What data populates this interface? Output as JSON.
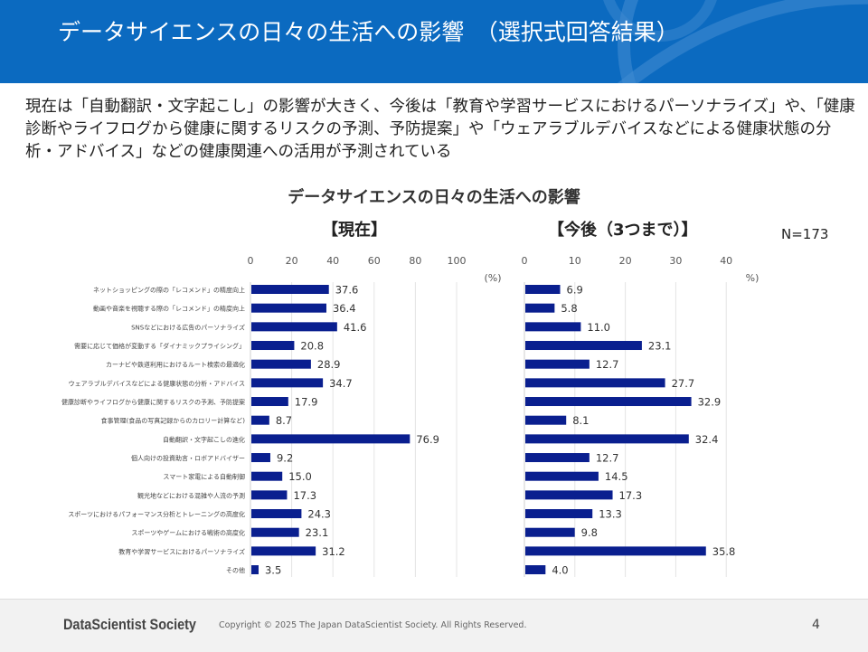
{
  "header": {
    "title": "データサイエンスの日々の生活への影響　（選択式回答結果）"
  },
  "summary": "現在は「自動翻訳・文字起こし」の影響が大きく、今後は「教育や学習サービスにおけるパーソナライズ」や、「健康診断やライフログから健康に関するリスクの予測、予防提案」や「ウェアラブルデバイスなどによる健康状態の分析・アドバイス」などの健康関連への活用が予測されている",
  "chart_title": "データサイエンスの日々の生活への影響",
  "sample_size": "N=173",
  "colors": {
    "bar": "#0a1f8f",
    "header": "#0b6ac0"
  },
  "chart_data": [
    {
      "type": "bar",
      "orientation": "horizontal",
      "title": "【現在】",
      "unit_label": "(%)",
      "xlim": [
        0,
        100
      ],
      "ticks": [
        0,
        20,
        40,
        60,
        80,
        100
      ],
      "categories": [
        "ネットショッピングの際の「レコメンド」の精度向上",
        "動画や音楽を視聴する際の「レコメンド」の精度向上",
        "SNSなどにおける広告のパーソナライズ",
        "需要に応じて価格が変動する「ダイナミックプライシング」",
        "カーナビや鉄道利用におけるルート検索の最適化",
        "ウェアラブルデバイスなどによる健康状態の分析・アドバイス",
        "健康診断やライフログから健康に関するリスクの予測、予防提案",
        "食事管理(食品の写真記録からのカロリー計算など)",
        "自動翻訳・文字起こしの進化",
        "個人向けの投資助言・ロボアドバイザー",
        "スマート家電による自動制御",
        "観光地などにおける混雑や人流の予測",
        "スポーツにおけるパフォーマンス分析とトレーニングの高度化",
        "スポーツやゲームにおける戦術の高度化",
        "教育や学習サービスにおけるパーソナライズ",
        "その他"
      ],
      "values": [
        37.6,
        36.4,
        41.6,
        20.8,
        28.9,
        34.7,
        17.9,
        8.7,
        76.9,
        9.2,
        15.0,
        17.3,
        24.3,
        23.1,
        31.2,
        3.5
      ]
    },
    {
      "type": "bar",
      "orientation": "horizontal",
      "title": "【今後（3つまで）】",
      "unit_label": "%)",
      "xlim": [
        0,
        45
      ],
      "ticks": [
        0,
        10,
        20,
        30,
        40
      ],
      "values": [
        6.9,
        5.8,
        11.0,
        23.1,
        12.7,
        27.7,
        32.9,
        8.1,
        32.4,
        12.7,
        14.5,
        17.3,
        13.3,
        9.8,
        35.8,
        4.0
      ]
    }
  ],
  "footer": {
    "logo": "DataScientist Society",
    "copyright": "Copyright © 2025 The Japan DataScientist Society. All Rights Reserved.",
    "page": "4"
  }
}
